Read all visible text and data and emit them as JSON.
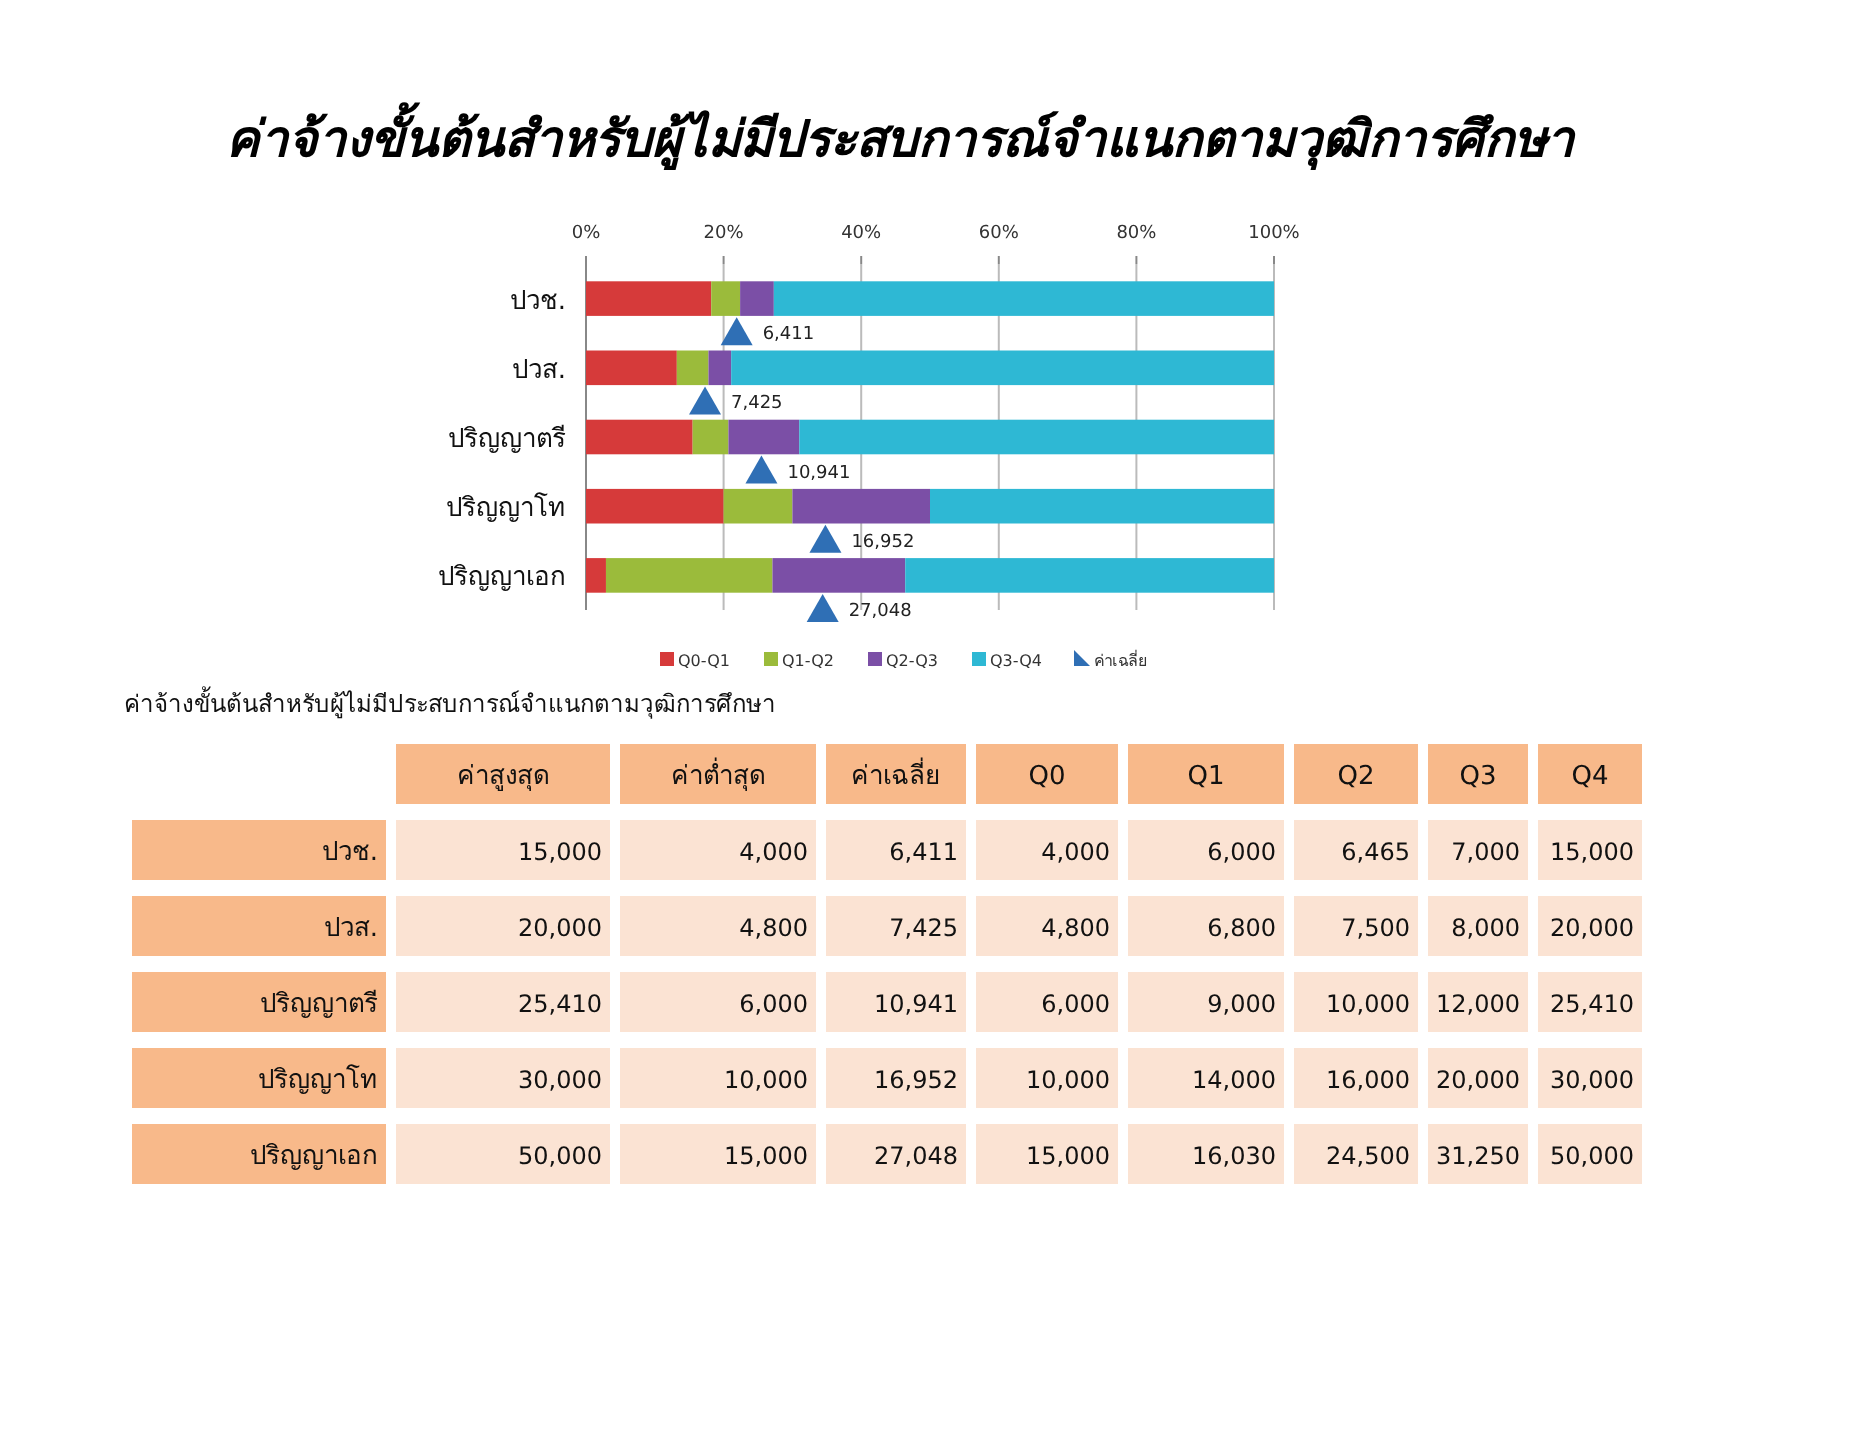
{
  "chart_data": [
    {
      "type": "bar",
      "title": "ค่าจ้างขั้นต้นสำหรับผู้ไม่มีประสบการณ์จำแนกตามวุฒิการศึกษา",
      "orientation": "horizontal",
      "stacked": true,
      "categories": [
        "ปวช.",
        "ปวส.",
        "ปริญญาตรี",
        "ปริญญาโท",
        "ปริญญาเอก"
      ],
      "series": [
        {
          "name": "Q0-Q1",
          "color": "#d63a3a",
          "values": [
            18.2,
            13.2,
            15.5,
            20,
            2.9
          ]
        },
        {
          "name": "Q1-Q2",
          "color": "#9bbb3b",
          "values": [
            4.2,
            4.6,
            5.2,
            10,
            24.2
          ]
        },
        {
          "name": "Q2-Q3",
          "color": "#7b4fa6",
          "values": [
            4.9,
            3.3,
            10.3,
            20,
            19.3
          ]
        },
        {
          "name": "Q3-Q4",
          "color": "#2eb8d4",
          "values": [
            72.7,
            78.9,
            69.0,
            50,
            53.6
          ]
        },
        {
          "name": "ค่าเฉลี่ย",
          "type": "scatter",
          "marker": "triangle",
          "color": "#2f6fb5",
          "values": [
            21.9,
            17.3,
            25.5,
            34.8,
            34.4
          ]
        }
      ],
      "annotations": [
        {
          "text": "6,411",
          "x": 21.9,
          "y": "ปวช."
        },
        {
          "text": "7,425",
          "x": 17.3,
          "y": "ปวส."
        },
        {
          "text": "10,941",
          "x": 25.5,
          "y": "ปริญญาตรี"
        },
        {
          "text": "16,952",
          "x": 34.8,
          "y": "ปริญญาโท"
        },
        {
          "text": "27,048",
          "x": 34.4,
          "y": "ปริญญาเอก"
        }
      ],
      "xlim": [
        0,
        100
      ],
      "xticks": [
        {
          "value": 0,
          "label": "0%"
        },
        {
          "value": 20,
          "label": "20%"
        },
        {
          "value": 40,
          "label": "40%"
        },
        {
          "value": 60,
          "label": "60%"
        },
        {
          "value": 80,
          "label": "80%"
        },
        {
          "value": 100,
          "label": "100%"
        }
      ],
      "grid": "x",
      "legend": "bottom"
    },
    {
      "type": "other",
      "title": "ค่าจ้างขั้นต้นสำหรับผู้ไม่มีประสบการณ์จำแนกตามวุฒิการศึกษา",
      "categories": [
        "ค่าสูงสุด",
        "ค่าต่ำสุด",
        "ค่าเฉลี่ย",
        "Q0",
        "Q1",
        "Q2",
        "Q3",
        "Q4"
      ],
      "y_categories": [
        "ปวช.",
        "ปวส.",
        "ปริญญาตรี",
        "ปริญญาโท",
        "ปริญญาเอก"
      ],
      "cell_labels": [
        [
          "15,000",
          "4,000",
          "6,411",
          "4,000",
          "6,000",
          "6,465",
          "7,000",
          "15,000"
        ],
        [
          "20,000",
          "4,800",
          "7,425",
          "4,800",
          "6,800",
          "7,500",
          "8,000",
          "20,000"
        ],
        [
          "25,410",
          "6,000",
          "10,941",
          "6,000",
          "9,000",
          "10,000",
          "12,000",
          "25,410"
        ],
        [
          "30,000",
          "10,000",
          "16,952",
          "10,000",
          "14,000",
          "16,000",
          "20,000",
          "30,000"
        ],
        [
          "50,000",
          "15,000",
          "27,048",
          "15,000",
          "16,030",
          "24,500",
          "31,250",
          "50,000"
        ]
      ]
    }
  ]
}
